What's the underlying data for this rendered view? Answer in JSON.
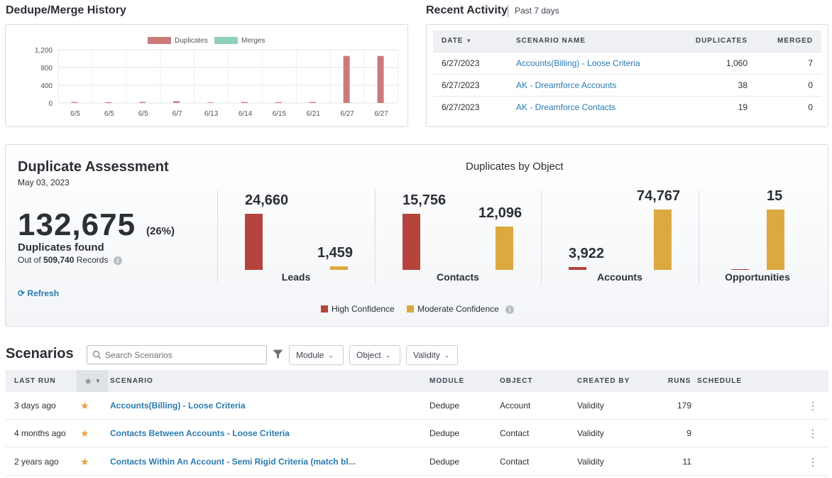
{
  "dedupe_history": {
    "title": "Dedupe/Merge History",
    "chart_data": {
      "type": "bar",
      "categories": [
        "6/5",
        "6/5",
        "6/5",
        "6/7",
        "6/13",
        "6/14",
        "6/15",
        "6/21",
        "6/27",
        "6/27"
      ],
      "series": [
        {
          "name": "Duplicates",
          "values": [
            20,
            18,
            22,
            40,
            12,
            22,
            20,
            22,
            1060,
            1060
          ]
        },
        {
          "name": "Merges",
          "values": [
            0,
            0,
            0,
            0,
            0,
            0,
            0,
            0,
            7,
            7
          ]
        }
      ],
      "yticks": [
        "0",
        "400",
        "800",
        "1,200"
      ],
      "ylim": [
        0,
        1200
      ],
      "grid": true,
      "legend_position": "top",
      "colors": {
        "Duplicates": "#c97b7b",
        "Merges": "#8ed1b8"
      }
    }
  },
  "recent_activity": {
    "title": "Recent Activity",
    "period": "Past 7 days",
    "columns": {
      "date": "DATE",
      "scenario": "SCENARIO NAME",
      "duplicates": "DUPLICATES",
      "merged": "MERGED"
    },
    "rows": [
      {
        "date": "6/27/2023",
        "scenario": "Accounts(Billing) - Loose Criteria",
        "duplicates": "1,060",
        "merged": "7"
      },
      {
        "date": "6/27/2023",
        "scenario": "AK - Dreamforce Accounts",
        "duplicates": "38",
        "merged": "0"
      },
      {
        "date": "6/27/2023",
        "scenario": "AK - Dreamforce Contacts",
        "duplicates": "19",
        "merged": "0"
      }
    ]
  },
  "assessment": {
    "title": "Duplicate Assessment",
    "date": "May 03, 2023",
    "total": "132,675",
    "percent": "(26%)",
    "found_label": "Duplicates found",
    "out_of_prefix": "Out of",
    "records_total": "509,740",
    "records_suffix": "Records",
    "refresh_label": "Refresh",
    "by_object_title": "Duplicates by Object",
    "legend": {
      "high": "High Confidence",
      "moderate": "Moderate Confidence"
    },
    "colors": {
      "high": "#b5443c",
      "moderate": "#dca941"
    },
    "chart_data": {
      "type": "bar",
      "categories": [
        "Leads",
        "Contacts",
        "Accounts",
        "Opportunities"
      ],
      "series": [
        {
          "name": "High Confidence",
          "values": [
            24660,
            15756,
            3922,
            0
          ]
        },
        {
          "name": "Moderate Confidence",
          "values": [
            1459,
            12096,
            74767,
            15
          ]
        }
      ],
      "labels": {
        "Leads": {
          "high": "24,660",
          "moderate": "1,459"
        },
        "Contacts": {
          "high": "15,756",
          "moderate": "12,096"
        },
        "Accounts": {
          "high": "3,922",
          "moderate": "74,767"
        },
        "Opportunities": {
          "high": "",
          "moderate": "15"
        }
      }
    }
  },
  "scenarios": {
    "title": "Scenarios",
    "search_placeholder": "Search Scenarios",
    "filters": {
      "module": "Module",
      "object": "Object",
      "validity": "Validity"
    },
    "columns": {
      "last_run": "LAST RUN",
      "scenario": "SCENARIO",
      "module": "MODULE",
      "object": "OBJECT",
      "created_by": "CREATED BY",
      "runs": "RUNS",
      "schedule": "SCHEDULE"
    },
    "rows": [
      {
        "last_run": "3 days ago",
        "scenario": "Accounts(Billing) - Loose Criteria",
        "module": "Dedupe",
        "object": "Account",
        "created_by": "Validity",
        "runs": "179",
        "schedule": ""
      },
      {
        "last_run": "4 months ago",
        "scenario": "Contacts Between Accounts - Loose Criteria",
        "module": "Dedupe",
        "object": "Contact",
        "created_by": "Validity",
        "runs": "9",
        "schedule": ""
      },
      {
        "last_run": "2 years ago",
        "scenario": "Contacts Within An Account - Semi Rigid Criteria (match bl...",
        "module": "Dedupe",
        "object": "Contact",
        "created_by": "Validity",
        "runs": "11",
        "schedule": ""
      }
    ]
  }
}
